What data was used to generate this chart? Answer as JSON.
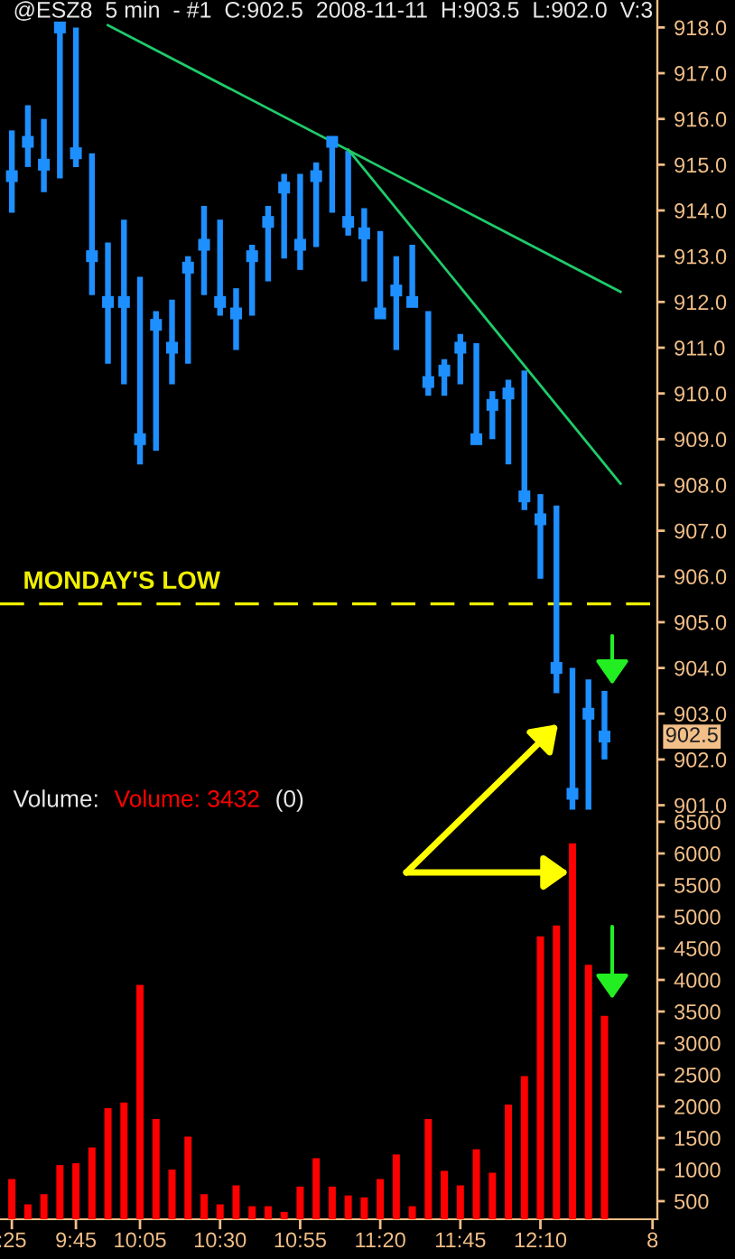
{
  "chart_data": {
    "type": "scatter",
    "title": "@ESZ8  5 min  - #1  C:902.5  2008-11-11  H:903.5  L:902.0  V:3",
    "categories": [
      ":25",
      null,
      null,
      null,
      "9:45",
      null,
      null,
      null,
      "10:05",
      null,
      null,
      null,
      null,
      "10:30",
      null,
      null,
      null,
      null,
      "10:55",
      null,
      null,
      null,
      null,
      "11:20",
      null,
      null,
      null,
      null,
      "11:45",
      null,
      null,
      null,
      null,
      "12:10",
      null,
      null,
      null,
      null,
      null,
      null,
      "8"
    ],
    "series": [
      {
        "color": "#1e8fff",
        "marker": "square",
        "values": [
          914.75,
          915.5,
          915.0,
          918.0,
          915.25,
          913.0,
          912.0,
          912.0,
          909.0,
          911.5,
          911.0,
          912.75,
          913.25,
          912.0,
          911.75,
          913.0,
          913.75,
          914.5,
          913.25,
          914.75,
          915.5,
          913.75,
          913.5,
          911.75,
          912.25,
          912.0,
          910.25,
          910.5,
          911.0,
          909.0,
          909.75,
          910.0,
          907.75,
          907.25,
          904.0,
          901.25,
          903.0,
          902.5,
          null,
          null,
          null
        ],
        "errors": [
          [
            913.95,
            915.75
          ],
          [
            914.95,
            916.3
          ],
          [
            914.4,
            916.0
          ],
          [
            914.7,
            918.0
          ],
          [
            914.95,
            918.0
          ],
          [
            912.15,
            915.25
          ],
          [
            910.65,
            913.3
          ],
          [
            910.2,
            913.8
          ],
          [
            908.45,
            912.55
          ],
          [
            908.75,
            911.8
          ],
          [
            910.2,
            912.05
          ],
          [
            910.65,
            913.0
          ],
          [
            912.15,
            914.1
          ],
          [
            911.7,
            913.8
          ],
          [
            910.95,
            912.3
          ],
          [
            911.7,
            913.25
          ],
          [
            912.45,
            914.1
          ],
          [
            912.95,
            914.8
          ],
          [
            912.7,
            914.8
          ],
          [
            913.2,
            915.05
          ],
          [
            913.95,
            915.55
          ],
          [
            913.45,
            915.3
          ],
          [
            912.45,
            914.05
          ],
          [
            911.7,
            913.55
          ],
          [
            910.95,
            913.0
          ],
          [
            911.95,
            913.25
          ],
          [
            909.95,
            911.8
          ],
          [
            909.95,
            910.75
          ],
          [
            910.2,
            911.3
          ],
          [
            908.95,
            911.1
          ],
          [
            909.0,
            910.05
          ],
          [
            908.45,
            910.3
          ],
          [
            907.45,
            910.5
          ],
          [
            905.95,
            907.8
          ],
          [
            903.45,
            907.55
          ],
          [
            900.9,
            904.0
          ],
          [
            900.9,
            903.75
          ],
          [
            902.0,
            903.5
          ],
          null,
          null,
          null
        ]
      },
      {
        "type": "line",
        "color": "#1fcc6a",
        "values": [
          null,
          null,
          null,
          null,
          null,
          null,
          918.05,
          null,
          null,
          null,
          null,
          null,
          null,
          null,
          null,
          null,
          null,
          null,
          null,
          null,
          null,
          null,
          null,
          null,
          null,
          null,
          null,
          null,
          null,
          null,
          null,
          null,
          null,
          null,
          null,
          null,
          null,
          null,
          912.22,
          null,
          null
        ]
      },
      {
        "type": "line",
        "color": "#1fcc6a",
        "values": [
          null,
          null,
          null,
          null,
          null,
          null,
          null,
          null,
          null,
          null,
          null,
          null,
          null,
          null,
          null,
          null,
          null,
          null,
          null,
          null,
          null,
          915.33,
          null,
          null,
          null,
          null,
          null,
          null,
          null,
          null,
          null,
          null,
          null,
          null,
          null,
          null,
          null,
          null,
          908.03,
          null,
          null
        ]
      },
      {
        "type": "bar",
        "axis": "y2",
        "name": "Volume: 3432",
        "color": "#ff0000",
        "values": [
          850,
          450,
          610,
          1070,
          1100,
          1350,
          1970,
          2060,
          3920,
          1800,
          1000,
          1520,
          610,
          450,
          750,
          420,
          420,
          330,
          730,
          1180,
          730,
          590,
          560,
          850,
          1240,
          420,
          1800,
          980,
          750,
          1320,
          950,
          2030,
          2480,
          4690,
          4860,
          6160,
          4240,
          3432,
          null,
          null,
          null
        ]
      }
    ],
    "ref_lines": [
      {
        "axis": "y",
        "value": 905.4,
        "label": "MONDAY'S LOW",
        "color": "#f0f000",
        "line_style": "dashed"
      }
    ],
    "annotations": [
      "Volume:",
      "(0)",
      "902.5"
    ],
    "ylim": [
      891.95,
      918.6
    ],
    "yticks": [
      {
        "value": 901,
        "label": "901.0"
      },
      {
        "value": 902,
        "label": "902.0"
      },
      {
        "value": 903,
        "label": "903.0"
      },
      {
        "value": 904,
        "label": "904.0"
      },
      {
        "value": 905,
        "label": "905.0"
      },
      {
        "value": 906,
        "label": "906.0"
      },
      {
        "value": 907,
        "label": "907.0"
      },
      {
        "value": 908,
        "label": "908.0"
      },
      {
        "value": 909,
        "label": "909.0"
      },
      {
        "value": 910,
        "label": "910.0"
      },
      {
        "value": 911,
        "label": "911.0"
      },
      {
        "value": 912,
        "label": "912.0"
      },
      {
        "value": 913,
        "label": "913.0"
      },
      {
        "value": 914,
        "label": "914.0"
      },
      {
        "value": 915,
        "label": "915.0"
      },
      {
        "value": 916,
        "label": "916.0"
      },
      {
        "value": 917,
        "label": "917.0"
      },
      {
        "value": 918,
        "label": "918.0"
      }
    ],
    "y2lim": [
      214,
      19500
    ],
    "y2ticks": [
      500,
      1000,
      1500,
      2000,
      2500,
      3000,
      3500,
      4000,
      4500,
      5000,
      5500,
      6000,
      6500
    ],
    "grid": false,
    "legend": false
  }
}
